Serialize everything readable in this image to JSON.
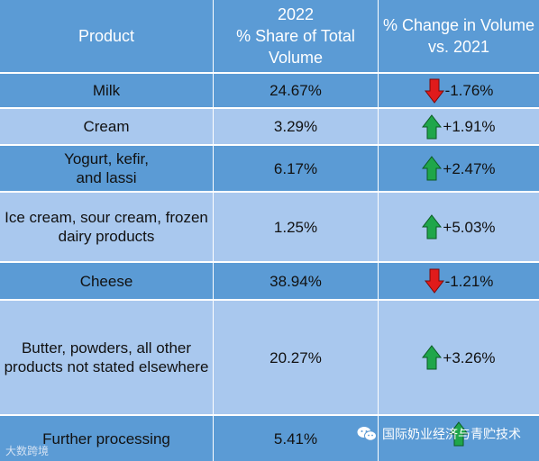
{
  "headers": {
    "product": "Product",
    "share": [
      "2022",
      "% Share of Total",
      "Volume"
    ],
    "change": [
      "% Change in Volume",
      "vs. 2021"
    ]
  },
  "rows": [
    {
      "product": [
        "Milk"
      ],
      "share": "24.67%",
      "change": "-1.76%",
      "direction": "down"
    },
    {
      "product": [
        "Cream"
      ],
      "share": "3.29%",
      "change": "+1.91%",
      "direction": "up"
    },
    {
      "product": [
        "Yogurt, kefir,",
        "and lassi"
      ],
      "share": "6.17%",
      "change": "+2.47%",
      "direction": "up"
    },
    {
      "product": [
        "Ice cream, sour cream, frozen",
        "dairy products"
      ],
      "share": "1.25%",
      "change": "+5.03%",
      "direction": "up"
    },
    {
      "product": [
        "Cheese"
      ],
      "share": "38.94%",
      "change": "-1.21%",
      "direction": "down"
    },
    {
      "product": [
        "Butter, powders, all other",
        "products not stated elsewhere"
      ],
      "share": "20.27%",
      "change": "+3.26%",
      "direction": "up"
    },
    {
      "product": [
        "Further processing"
      ],
      "share": "5.41%",
      "change": "",
      "direction": "up"
    }
  ],
  "watermarks": {
    "left": "大数跨境",
    "right": "国际奶业经济与青贮技术"
  },
  "colors": {
    "dark_row": "#5b9bd5",
    "light_row": "#a9c8ee",
    "up_arrow": "#1fa64a",
    "down_arrow": "#e01b1b"
  },
  "icons": {
    "up": "up-arrow-icon",
    "down": "down-arrow-icon",
    "watermark": "wechat-icon"
  }
}
